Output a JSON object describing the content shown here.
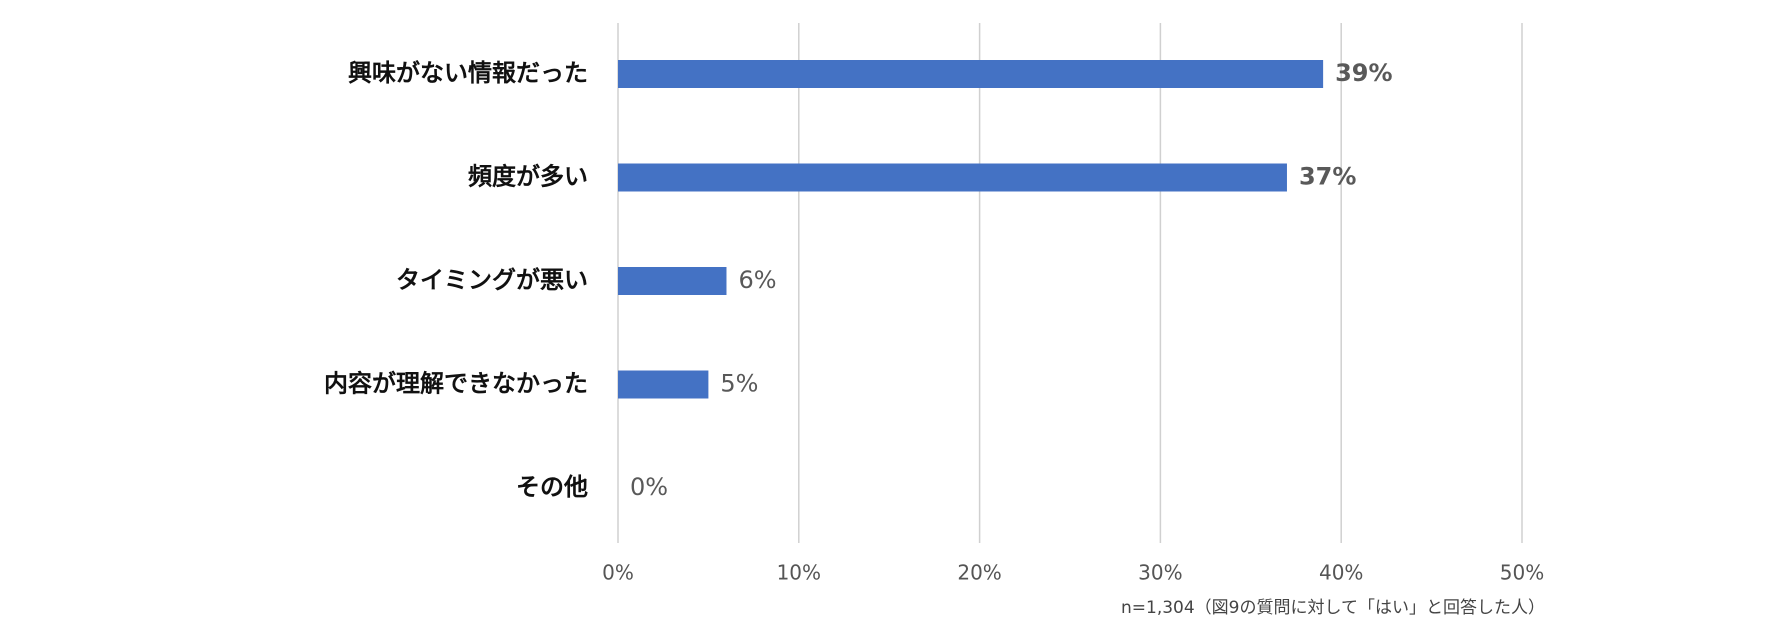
{
  "chart_data": {
    "type": "hbar",
    "categories": [
      "興味がない情報だった",
      "頻度が多い",
      "タイミングが悪い",
      "内容が理解できなかった",
      "その他"
    ],
    "values": [
      39,
      37,
      6,
      5,
      0
    ],
    "value_labels": [
      "39%",
      "37%",
      "6%",
      "5%",
      "0%"
    ],
    "color": "#4472c4",
    "xlim": [
      0,
      50
    ],
    "xticks": [
      {
        "value": 0,
        "label": "0%"
      },
      {
        "value": 10,
        "label": "10%"
      },
      {
        "value": 20,
        "label": "20%"
      },
      {
        "value": 30,
        "label": "30%"
      },
      {
        "value": 40,
        "label": "40%"
      },
      {
        "value": 50,
        "label": "50%"
      }
    ],
    "grid": true,
    "note": "n=1,304（図9の質問に対して「はい」と回答した人）"
  }
}
